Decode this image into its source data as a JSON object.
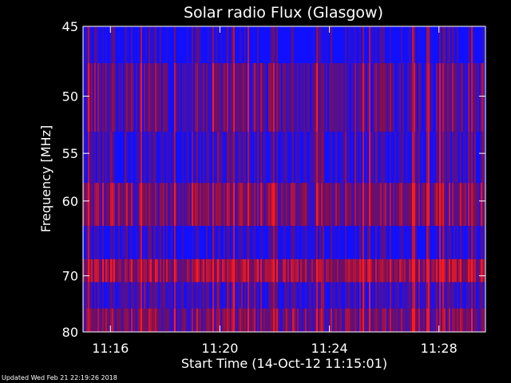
{
  "chart_data": {
    "type": "heatmap",
    "title": "Solar radio Flux (Glasgow)",
    "xlabel": "Start Time (14-Oct-12 11:15:01)",
    "ylabel": "Frequency [MHz]",
    "x_ticks": [
      {
        "label": "11:16",
        "minute": 1.0
      },
      {
        "label": "11:20",
        "minute": 5.0
      },
      {
        "label": "11:24",
        "minute": 9.0
      },
      {
        "label": "11:28",
        "minute": 13.0
      }
    ],
    "x_range_minutes": [
      0,
      14.7
    ],
    "y_ticks": [
      45,
      50,
      55,
      60,
      70,
      80
    ],
    "ylim": [
      45,
      80
    ],
    "y_scale": "reciprocal",
    "colors": {
      "background": "#000000",
      "low": "#1010ff",
      "mid": "#7a0e55",
      "high": "#ff1a1a",
      "axes": "#ffffff"
    },
    "frequency_bands": [
      {
        "f_low": 45.0,
        "f_high": 47.5,
        "intensity": 0.06
      },
      {
        "f_low": 47.5,
        "f_high": 53.0,
        "intensity": 0.32
      },
      {
        "f_low": 53.0,
        "f_high": 58.0,
        "intensity": 0.18
      },
      {
        "f_low": 58.0,
        "f_high": 63.0,
        "intensity": 0.48
      },
      {
        "f_low": 63.0,
        "f_high": 67.5,
        "intensity": 0.1
      },
      {
        "f_low": 67.5,
        "f_high": 71.0,
        "intensity": 0.62
      },
      {
        "f_low": 71.0,
        "f_high": 75.5,
        "intensity": 0.22
      },
      {
        "f_low": 75.5,
        "f_high": 80.0,
        "intensity": 0.45
      }
    ]
  },
  "footer": "Updated Wed Feb 21 22:19:26 2018"
}
